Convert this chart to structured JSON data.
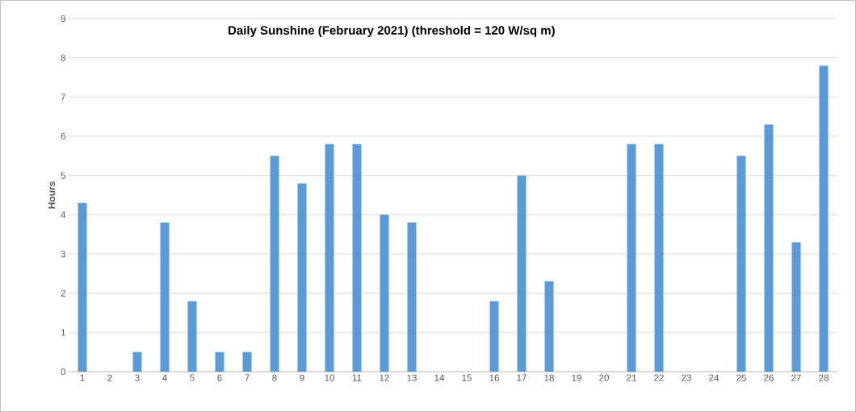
{
  "chart_data": {
    "type": "bar",
    "title": "Daily Sunshine (February 2021) (threshold = 120 W/sq m)",
    "ylabel": "Hours",
    "categories": [
      "1",
      "2",
      "3",
      "4",
      "5",
      "6",
      "7",
      "8",
      "9",
      "10",
      "11",
      "12",
      "13",
      "14",
      "15",
      "16",
      "17",
      "18",
      "19",
      "20",
      "21",
      "22",
      "23",
      "24",
      "25",
      "26",
      "27",
      "28"
    ],
    "values": [
      4.3,
      0,
      0.5,
      3.8,
      1.8,
      0.5,
      0.5,
      5.5,
      4.8,
      5.8,
      5.8,
      4.0,
      3.8,
      0,
      0,
      1.8,
      5.0,
      2.3,
      0,
      0,
      5.8,
      5.8,
      0,
      0,
      5.5,
      6.3,
      3.3,
      7.8
    ],
    "color": "#5b9bd5",
    "ylim": [
      0,
      9
    ],
    "yticks": [
      0,
      1,
      2,
      3,
      4,
      5,
      6,
      7,
      8,
      9
    ],
    "grid": "y"
  }
}
